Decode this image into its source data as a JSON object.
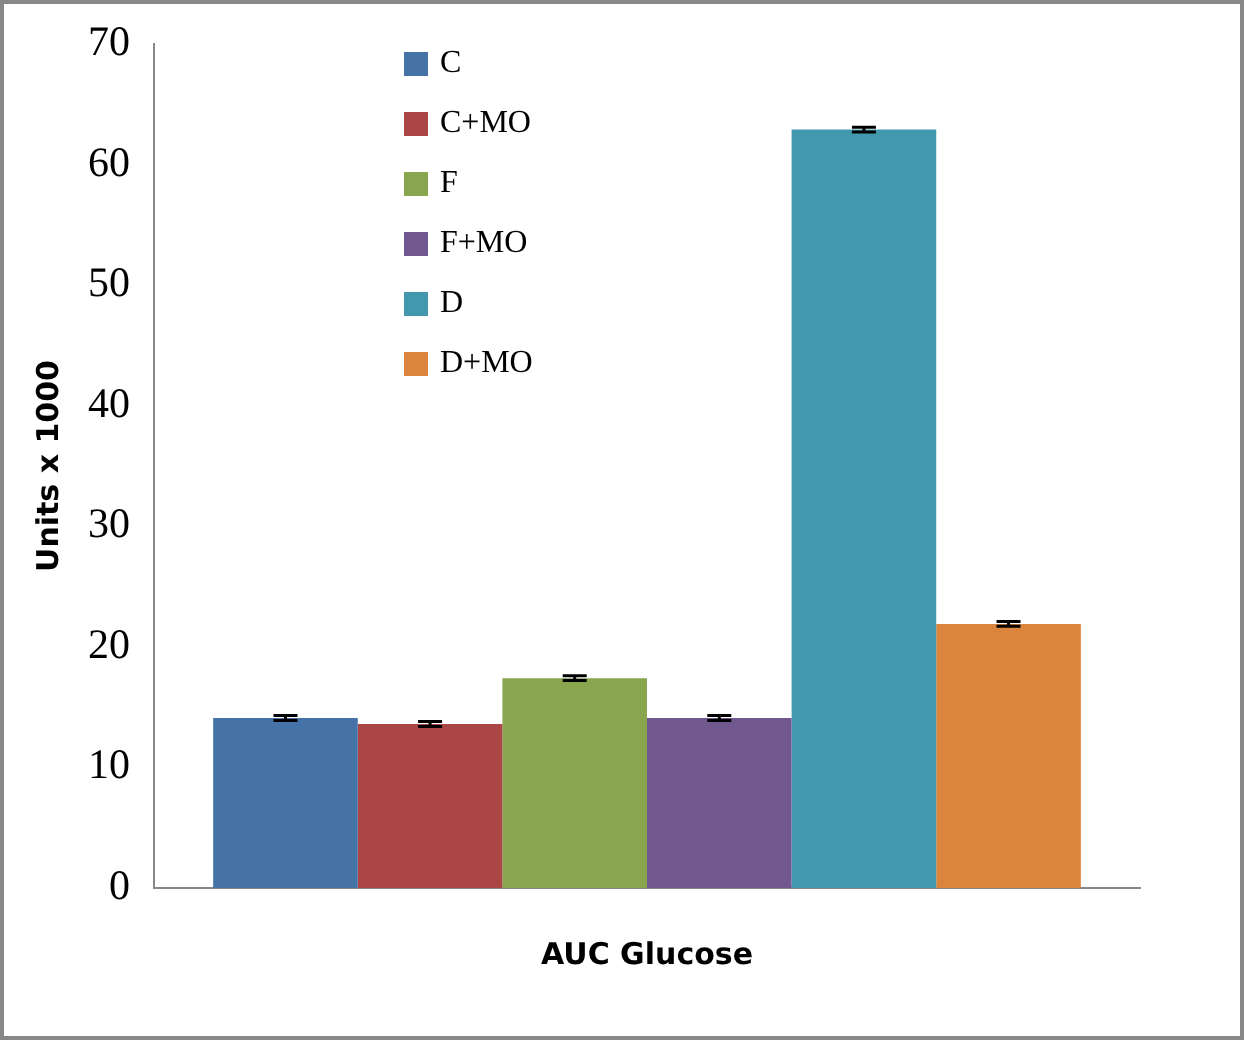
{
  "chart_data": {
    "type": "bar",
    "ylabel": "Units x 1000",
    "categories": [
      "AUC Glucose"
    ],
    "series": [
      {
        "name": "C",
        "color": "#4572a7",
        "values": [
          14.1
        ],
        "errors": [
          0.2
        ]
      },
      {
        "name": "C+MO",
        "color": "#aa4643",
        "values": [
          13.6
        ],
        "errors": [
          0.2
        ]
      },
      {
        "name": "F",
        "color": "#89a54e",
        "values": [
          17.4
        ],
        "errors": [
          0.2
        ]
      },
      {
        "name": "F+MO",
        "color": "#71588f",
        "values": [
          14.1
        ],
        "errors": [
          0.2
        ]
      },
      {
        "name": "D",
        "color": "#4198af",
        "values": [
          62.9
        ],
        "errors": [
          0.2
        ]
      },
      {
        "name": "D+MO",
        "color": "#db843d",
        "values": [
          21.9
        ],
        "errors": [
          0.2
        ]
      }
    ],
    "ylim": [
      0,
      70
    ],
    "yticks": [
      0,
      10,
      20,
      30,
      40,
      50,
      60,
      70
    ],
    "grid": false,
    "legend": "top left"
  }
}
